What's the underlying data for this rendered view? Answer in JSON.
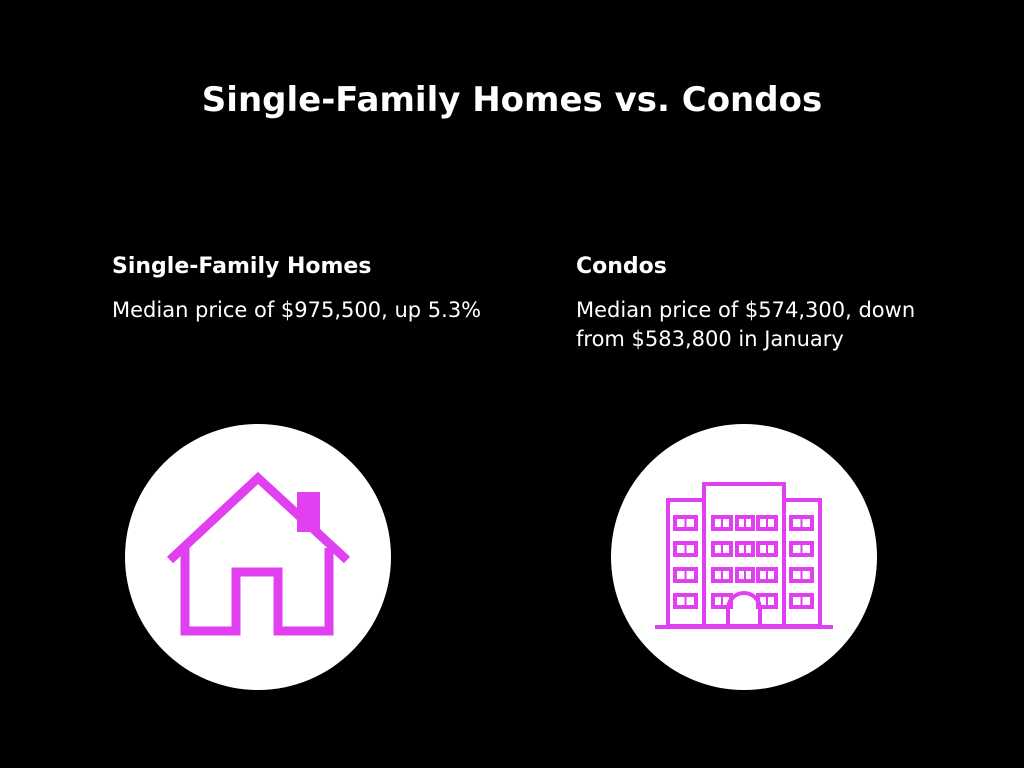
{
  "title": "Single-Family Homes vs. Condos",
  "accent_color": "#e040f0",
  "single_family": {
    "heading": "Single-Family Homes",
    "description": "Median price of $975,500, up 5.3%",
    "icon": "house-icon"
  },
  "condos": {
    "heading": "Condos",
    "description": "Median price of $574,300, down from $583,800 in January",
    "icon": "building-icon"
  }
}
